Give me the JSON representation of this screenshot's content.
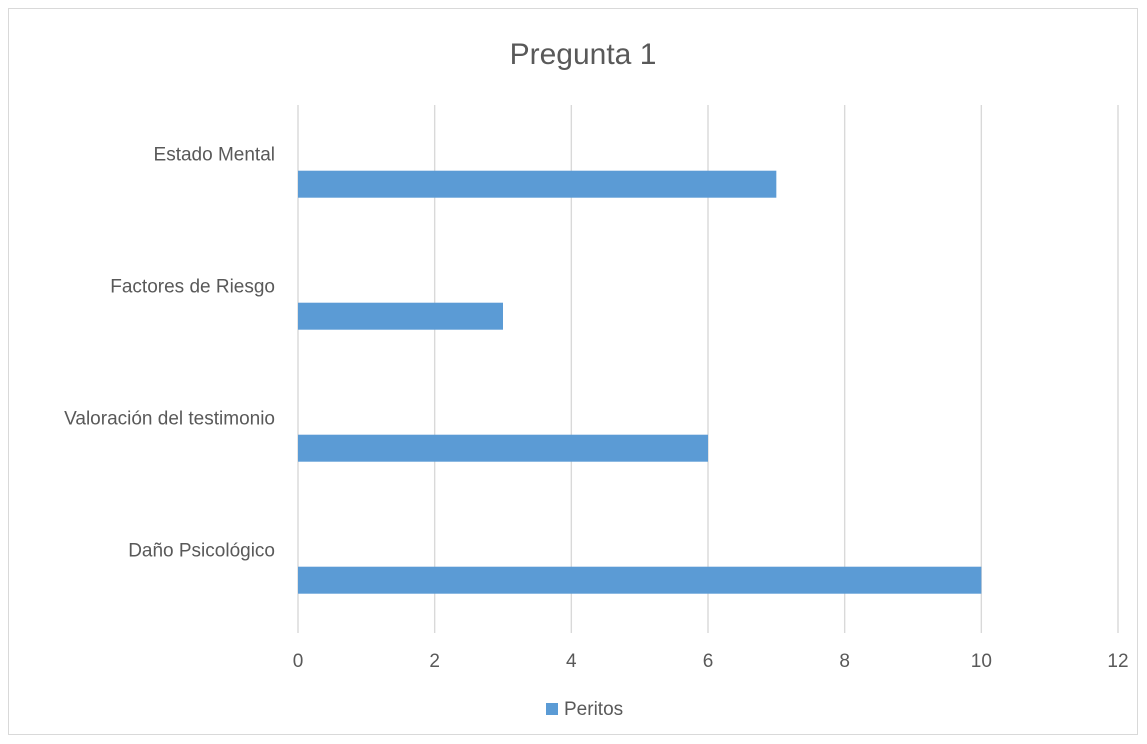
{
  "chart_data": {
    "type": "bar",
    "orientation": "horizontal",
    "title": "Pregunta 1",
    "categories": [
      "Estado Mental",
      "Factores de Riesgo",
      "Valoración del testimonio",
      "Daño Psicológico"
    ],
    "series": [
      {
        "name": "Peritos",
        "values": [
          7,
          3,
          6,
          10
        ],
        "color": "#5b9bd5"
      }
    ],
    "xlim": [
      0,
      12
    ],
    "xticks": [
      0,
      2,
      4,
      6,
      8,
      10,
      12
    ],
    "xlabel": "",
    "ylabel": "",
    "grid": true,
    "legend_position": "bottom"
  }
}
